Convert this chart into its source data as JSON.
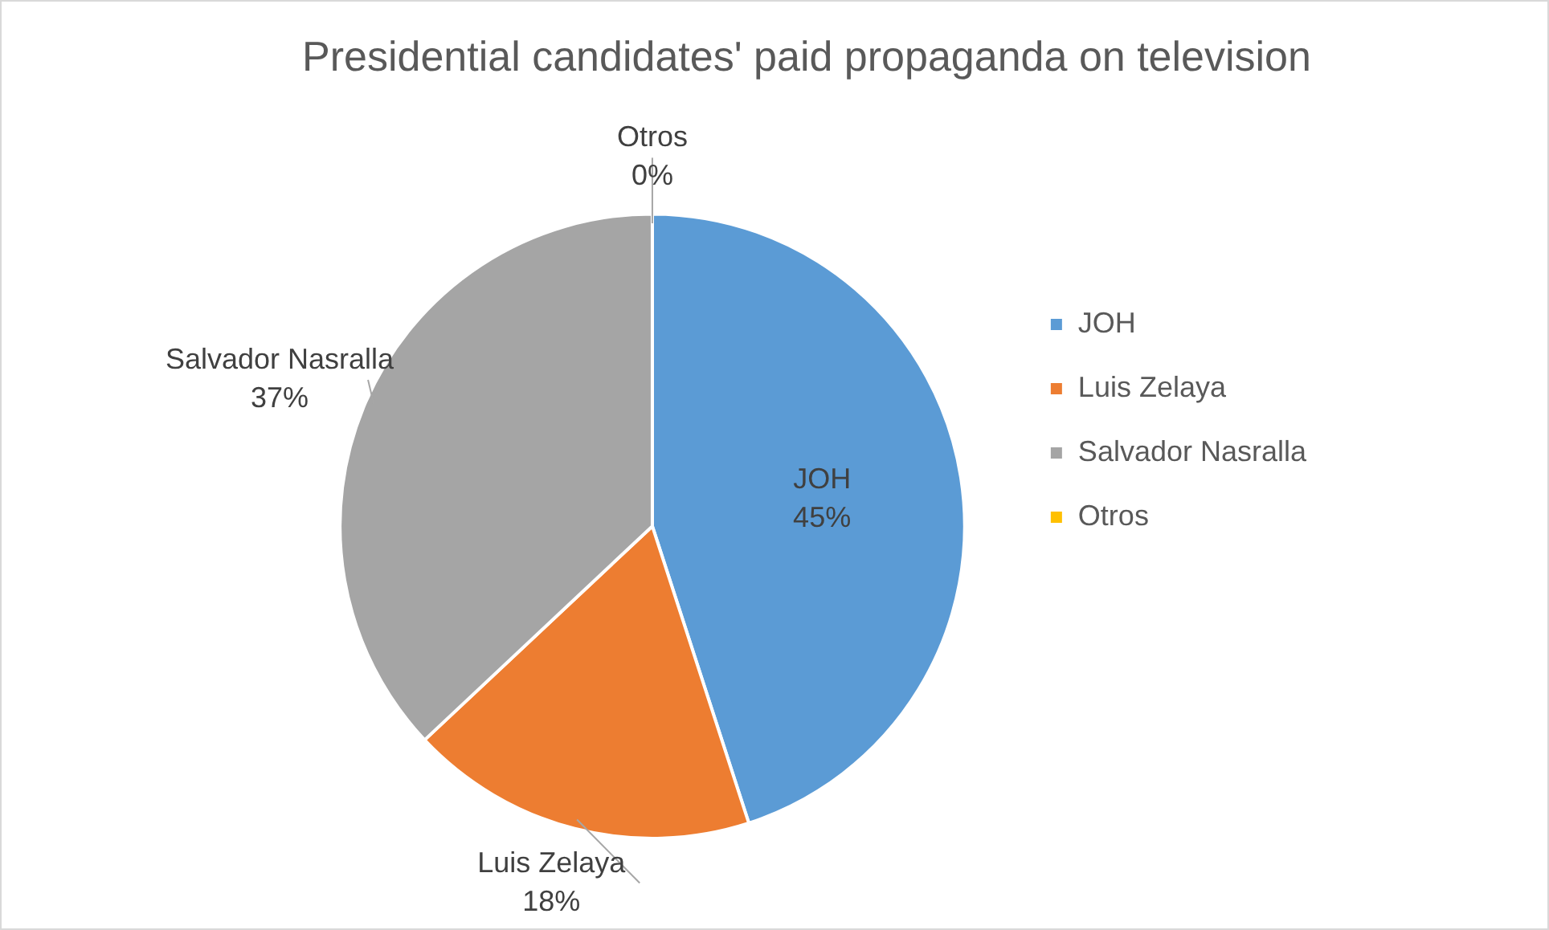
{
  "chart_data": {
    "type": "pie",
    "title": "Presidential candidates' paid propaganda on television",
    "categories": [
      "JOH",
      "Luis Zelaya",
      "Salvador Nasralla",
      "Otros"
    ],
    "values": [
      45,
      18,
      37,
      0
    ],
    "colors": [
      "#5b9bd5",
      "#ed7d31",
      "#a5a5a5",
      "#ffc000"
    ],
    "value_labels": [
      "45%",
      "18%",
      "37%",
      "0%"
    ],
    "legend": "right"
  }
}
